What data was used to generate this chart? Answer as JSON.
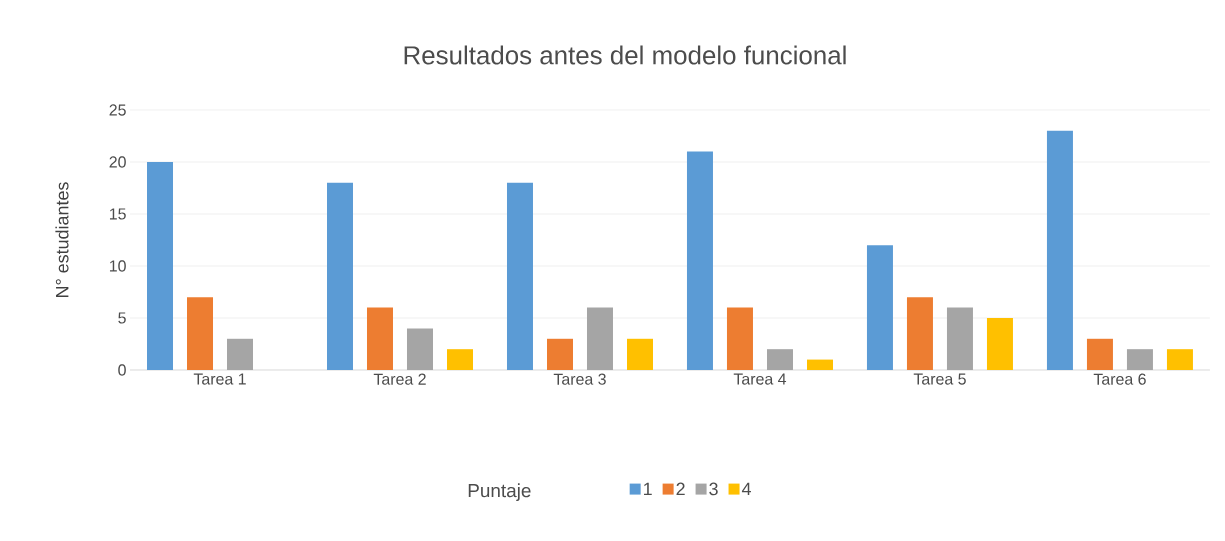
{
  "chart_data": {
    "type": "bar",
    "title": "Resultados antes del modelo funcional",
    "ylabel": "N° estudiantes",
    "legend_title": "Puntaje",
    "categories": [
      "Tarea 1",
      "Tarea 2",
      "Tarea 3",
      "Tarea 4",
      "Tarea 5",
      "Tarea 6"
    ],
    "series": [
      {
        "name": "1",
        "color": "#5b9bd5",
        "values": [
          20,
          18,
          18,
          21,
          12,
          23
        ]
      },
      {
        "name": "2",
        "color": "#ed7d31",
        "values": [
          7,
          6,
          3,
          6,
          7,
          3
        ]
      },
      {
        "name": "3",
        "color": "#a5a5a5",
        "values": [
          3,
          4,
          6,
          2,
          6,
          2
        ]
      },
      {
        "name": "4",
        "color": "#ffc000",
        "values": [
          0,
          2,
          3,
          1,
          5,
          2
        ]
      }
    ],
    "ylim": [
      0,
      25
    ],
    "yticks": [
      0,
      5,
      10,
      15,
      20,
      25
    ],
    "grid": "y",
    "legend": "bottom"
  }
}
